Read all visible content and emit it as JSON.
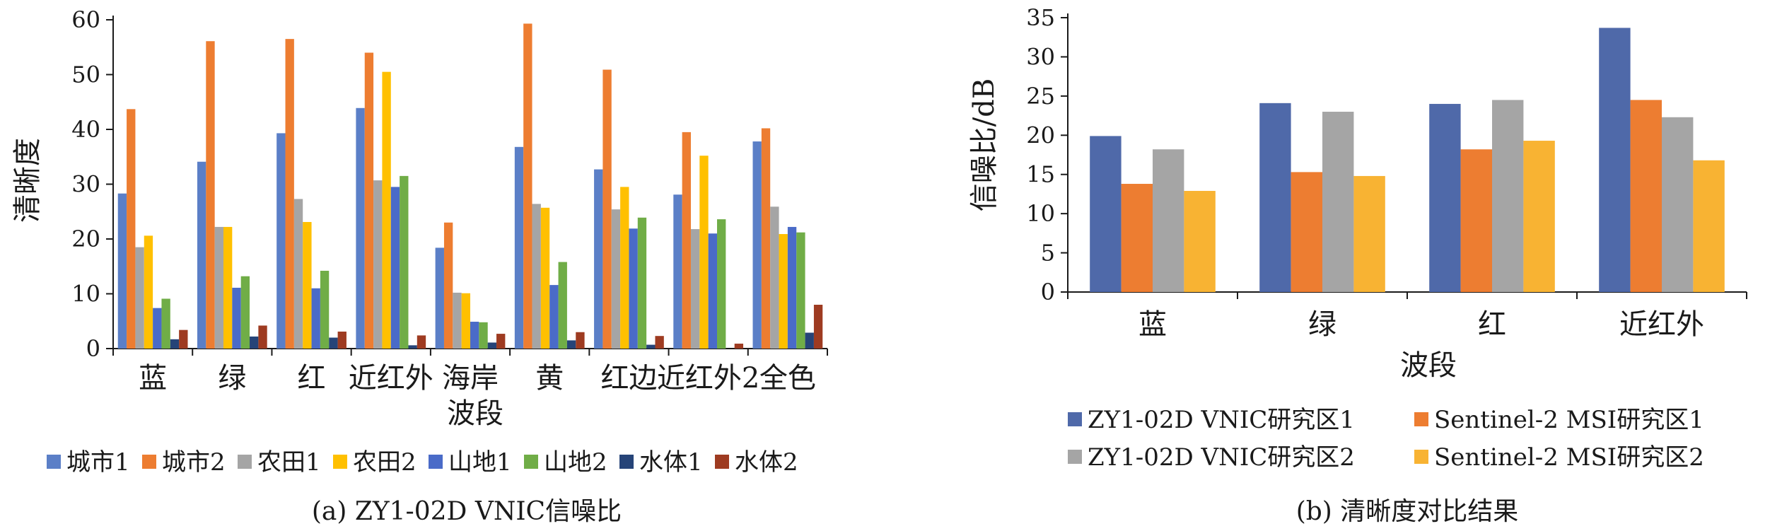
{
  "chart_data": [
    {
      "type": "bar",
      "caption": "(a) ZY1-02D VNIC信噪比",
      "xlabel": "波段",
      "ylabel": "清晰度",
      "ylim": [
        0,
        60
      ],
      "yticks": [
        "0",
        "10",
        "20",
        "30",
        "40",
        "50",
        "60"
      ],
      "categories": [
        "蓝",
        "绿",
        "红",
        "近红外",
        "海岸",
        "黄",
        "红边",
        "近红外2",
        "全色"
      ],
      "legend_position": "bottom",
      "series": [
        {
          "name": "城市1",
          "color": "#5b7fc7",
          "values": [
            28.3,
            34.1,
            39.3,
            43.9,
            18.4,
            36.8,
            32.7,
            28.1,
            37.8
          ]
        },
        {
          "name": "城市2",
          "color": "#ed7d31",
          "values": [
            43.7,
            56.1,
            56.5,
            54.0,
            23.0,
            59.3,
            50.9,
            39.5,
            40.2
          ]
        },
        {
          "name": "农田1",
          "color": "#a5a5a5",
          "values": [
            18.5,
            22.2,
            27.3,
            30.7,
            10.2,
            26.4,
            25.4,
            21.8,
            25.9
          ]
        },
        {
          "name": "农田2",
          "color": "#ffc000",
          "values": [
            20.6,
            22.2,
            23.1,
            50.5,
            10.1,
            25.7,
            29.5,
            35.2,
            20.9
          ]
        },
        {
          "name": "山地1",
          "color": "#4a6bc8",
          "values": [
            7.4,
            11.1,
            11.0,
            29.5,
            4.9,
            11.6,
            21.9,
            21.0,
            22.2
          ]
        },
        {
          "name": "山地2",
          "color": "#70ad47",
          "values": [
            9.1,
            13.2,
            14.2,
            31.5,
            4.8,
            15.8,
            23.9,
            23.6,
            21.2
          ]
        },
        {
          "name": "水体1",
          "color": "#264478",
          "values": [
            1.7,
            2.2,
            2.0,
            0.6,
            1.1,
            1.5,
            0.7,
            0.0,
            2.9
          ]
        },
        {
          "name": "水体2",
          "color": "#9e3b21",
          "values": [
            3.4,
            4.2,
            3.1,
            2.4,
            2.7,
            3.0,
            2.3,
            0.9,
            8.0
          ]
        }
      ]
    },
    {
      "type": "bar",
      "caption": "(b) 清晰度对比结果",
      "xlabel": "波段",
      "ylabel": "信噪比/dB",
      "ylim": [
        0,
        35
      ],
      "yticks": [
        "0",
        "5",
        "10",
        "15",
        "20",
        "25",
        "30",
        "35"
      ],
      "categories": [
        "蓝",
        "绿",
        "红",
        "近红外"
      ],
      "legend_position": "bottom",
      "series": [
        {
          "name": "ZY1-02D VNIC研究区1",
          "color": "#4f69a9",
          "values": [
            19.9,
            24.1,
            24.0,
            33.7
          ]
        },
        {
          "name": "Sentinel-2 MSI研究区1",
          "color": "#ed7d31",
          "values": [
            13.8,
            15.3,
            18.2,
            24.5
          ]
        },
        {
          "name": "ZY1-02D VNIC研究区2",
          "color": "#a5a5a5",
          "values": [
            18.2,
            23.0,
            24.5,
            22.3
          ]
        },
        {
          "name": "Sentinel-2 MSI研究区2",
          "color": "#f8b333",
          "values": [
            12.9,
            14.8,
            19.3,
            16.8
          ]
        }
      ]
    }
  ]
}
